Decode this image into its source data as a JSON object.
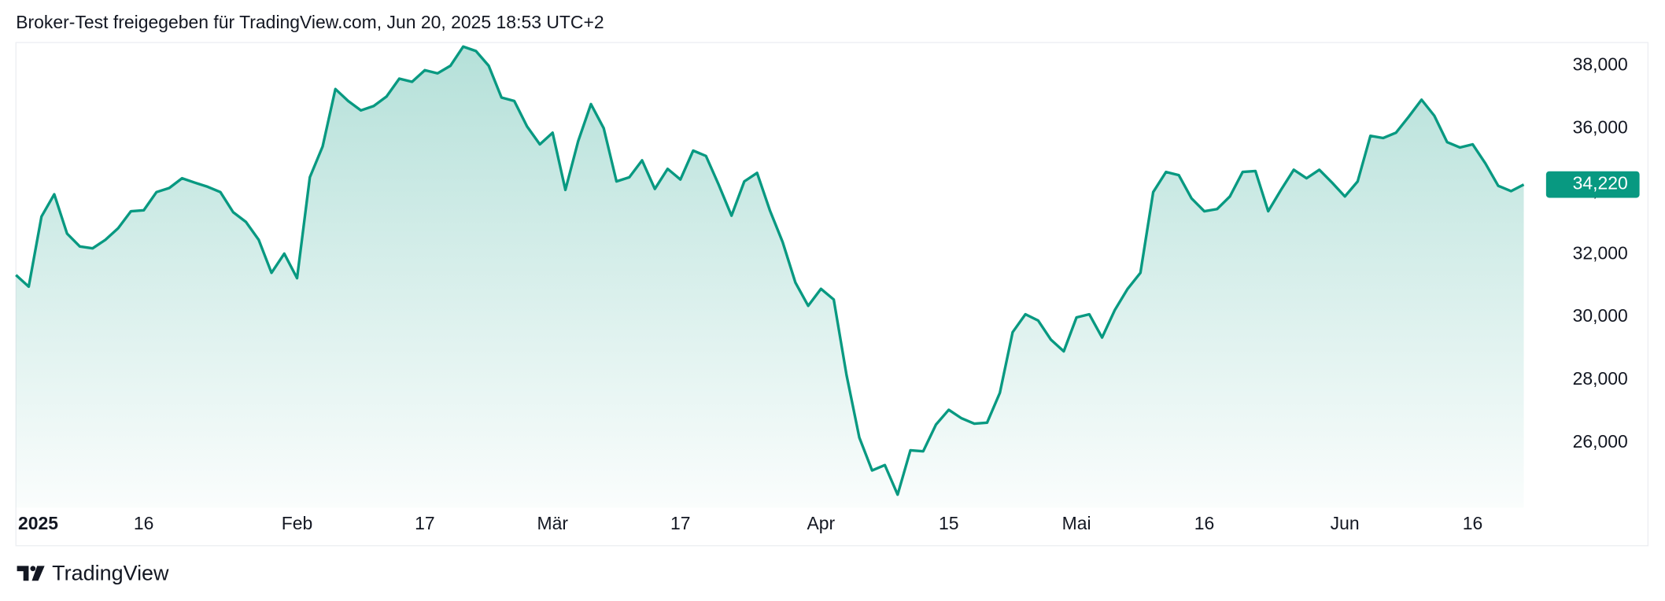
{
  "header": {
    "title": "Broker-Test freigegeben für TradingView.com, Jun 20, 2025 18:53 UTC+2"
  },
  "footer": {
    "brand": "TradingView"
  },
  "chart_data": {
    "type": "area",
    "color": "#089981",
    "values": [
      31340,
      30970,
      33200,
      33910,
      32660,
      32250,
      32190,
      32460,
      32830,
      33370,
      33400,
      33980,
      34110,
      34420,
      34280,
      34150,
      33980,
      33340,
      33030,
      32460,
      31410,
      32020,
      31240,
      34450,
      35430,
      37260,
      36880,
      36580,
      36720,
      37020,
      37590,
      37490,
      37860,
      37760,
      38000,
      38610,
      38470,
      38000,
      36990,
      36880,
      36070,
      35500,
      35870,
      34050,
      35600,
      36780,
      36010,
      34320,
      34450,
      34990,
      34080,
      34720,
      34380,
      35300,
      35130,
      34210,
      33230,
      34320,
      34590,
      33400,
      32390,
      31100,
      30360,
      30900,
      30560,
      28160,
      26170,
      25120,
      25290,
      24350,
      25760,
      25730,
      26580,
      27050,
      26780,
      26610,
      26640,
      27590,
      29520,
      30090,
      29890,
      29280,
      28910,
      29990,
      30090,
      29350,
      30230,
      30900,
      31410,
      33980,
      34620,
      34520,
      33780,
      33370,
      33440,
      33840,
      34620,
      34650,
      33370,
      34050,
      34690,
      34420,
      34690,
      34280,
      33840,
      34320,
      35770,
      35700,
      35870,
      36380,
      36920,
      36410,
      35570,
      35400,
      35500,
      34890,
      34180,
      34010,
      34220
    ],
    "xlim": [
      0,
      118
    ],
    "xticks": [
      {
        "value": 2,
        "label": "2025"
      },
      {
        "value": 10,
        "label": "16"
      },
      {
        "value": 22,
        "label": "Feb"
      },
      {
        "value": 32,
        "label": "17"
      },
      {
        "value": 42,
        "label": "Mär"
      },
      {
        "value": 52,
        "label": "17"
      },
      {
        "value": 63,
        "label": "Apr"
      },
      {
        "value": 73,
        "label": "15"
      },
      {
        "value": 83,
        "label": "Mai"
      },
      {
        "value": 93,
        "label": "16"
      },
      {
        "value": 104,
        "label": "Jun"
      },
      {
        "value": 114,
        "label": "16"
      }
    ],
    "ylim": [
      23940,
      38740
    ],
    "yticks": [
      {
        "value": 26000,
        "label": "26,000"
      },
      {
        "value": 28000,
        "label": "28,000"
      },
      {
        "value": 30000,
        "label": "30,000"
      },
      {
        "value": 32000,
        "label": "32,000"
      },
      {
        "value": 34000,
        "label": "34,000"
      },
      {
        "value": 36000,
        "label": "36,000"
      },
      {
        "value": 38000,
        "label": "38,000"
      }
    ],
    "annotations": [
      {
        "value": 34220,
        "label": "34,220"
      }
    ]
  }
}
